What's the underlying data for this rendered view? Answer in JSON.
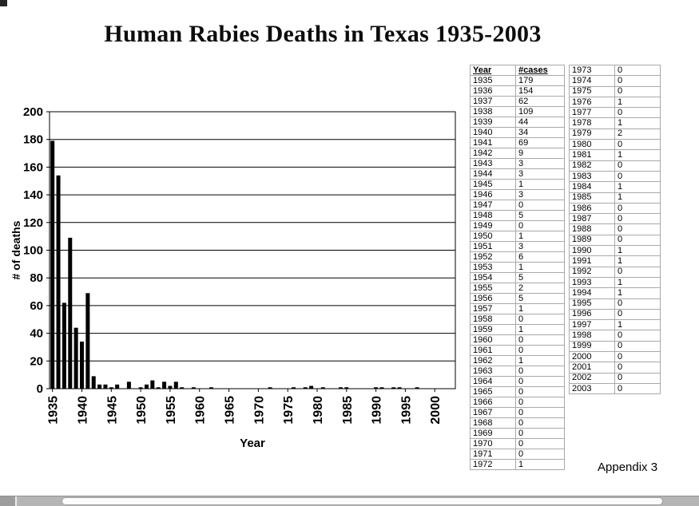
{
  "title": "Human Rabies Deaths in Texas 1935-2003",
  "appendix_label": "Appendix 3",
  "chart_data": {
    "type": "bar",
    "title": "Human Rabies Deaths in Texas 1935-2003",
    "xlabel": "Year",
    "ylabel": "# of deaths",
    "ylim": [
      0,
      200
    ],
    "ytick_interval": 20,
    "grid": true,
    "legend": "none",
    "bar_color": "#000000",
    "x_tick_years": [
      1935,
      1940,
      1945,
      1950,
      1955,
      1960,
      1965,
      1970,
      1975,
      1980,
      1985,
      1990,
      1995,
      2000
    ],
    "x": [
      1935,
      1936,
      1937,
      1938,
      1939,
      1940,
      1941,
      1942,
      1943,
      1944,
      1945,
      1946,
      1947,
      1948,
      1949,
      1950,
      1951,
      1952,
      1953,
      1954,
      1955,
      1956,
      1957,
      1958,
      1959,
      1960,
      1961,
      1962,
      1963,
      1964,
      1965,
      1966,
      1967,
      1968,
      1969,
      1970,
      1971,
      1972,
      1973,
      1974,
      1975,
      1976,
      1977,
      1978,
      1979,
      1980,
      1981,
      1982,
      1983,
      1984,
      1985,
      1986,
      1987,
      1988,
      1989,
      1990,
      1991,
      1992,
      1993,
      1994,
      1995,
      1996,
      1997,
      1998,
      1999,
      2000,
      2001,
      2002,
      2003
    ],
    "values": [
      179,
      154,
      62,
      109,
      44,
      34,
      69,
      9,
      3,
      3,
      1,
      3,
      0,
      5,
      0,
      1,
      3,
      6,
      1,
      5,
      2,
      5,
      1,
      0,
      1,
      0,
      0,
      1,
      0,
      0,
      0,
      0,
      0,
      0,
      0,
      0,
      0,
      1,
      0,
      0,
      0,
      1,
      0,
      1,
      2,
      0,
      1,
      0,
      0,
      1,
      1,
      0,
      0,
      0,
      0,
      1,
      1,
      0,
      1,
      1,
      0,
      0,
      1,
      0,
      0,
      0,
      0,
      0,
      0
    ]
  },
  "tables": {
    "left": {
      "headers": [
        "Year",
        "#cases"
      ],
      "rows": [
        [
          "1935",
          "179"
        ],
        [
          "1936",
          "154"
        ],
        [
          "1937",
          "62"
        ],
        [
          "1938",
          "109"
        ],
        [
          "1939",
          "44"
        ],
        [
          "1940",
          "34"
        ],
        [
          "1941",
          "69"
        ],
        [
          "1942",
          "9"
        ],
        [
          "1943",
          "3"
        ],
        [
          "1944",
          "3"
        ],
        [
          "1945",
          "1"
        ],
        [
          "1946",
          "3"
        ],
        [
          "1947",
          "0"
        ],
        [
          "1948",
          "5"
        ],
        [
          "1949",
          "0"
        ],
        [
          "1950",
          "1"
        ],
        [
          "1951",
          "3"
        ],
        [
          "1952",
          "6"
        ],
        [
          "1953",
          "1"
        ],
        [
          "1954",
          "5"
        ],
        [
          "1955",
          "2"
        ],
        [
          "1956",
          "5"
        ],
        [
          "1957",
          "1"
        ],
        [
          "1958",
          "0"
        ],
        [
          "1959",
          "1"
        ],
        [
          "1960",
          "0"
        ],
        [
          "1961",
          "0"
        ],
        [
          "1962",
          "1"
        ],
        [
          "1963",
          "0"
        ],
        [
          "1964",
          "0"
        ],
        [
          "1965",
          "0"
        ],
        [
          "1966",
          "0"
        ],
        [
          "1967",
          "0"
        ],
        [
          "1968",
          "0"
        ],
        [
          "1969",
          "0"
        ],
        [
          "1970",
          "0"
        ],
        [
          "1971",
          "0"
        ],
        [
          "1972",
          "1"
        ]
      ]
    },
    "right": {
      "rows": [
        [
          "1973",
          "0"
        ],
        [
          "1974",
          "0"
        ],
        [
          "1975",
          "0"
        ],
        [
          "1976",
          "1"
        ],
        [
          "1977",
          "0"
        ],
        [
          "1978",
          "1"
        ],
        [
          "1979",
          "2"
        ],
        [
          "1980",
          "0"
        ],
        [
          "1981",
          "1"
        ],
        [
          "1982",
          "0"
        ],
        [
          "1983",
          "0"
        ],
        [
          "1984",
          "1"
        ],
        [
          "1985",
          "1"
        ],
        [
          "1986",
          "0"
        ],
        [
          "1987",
          "0"
        ],
        [
          "1988",
          "0"
        ],
        [
          "1989",
          "0"
        ],
        [
          "1990",
          "1"
        ],
        [
          "1991",
          "1"
        ],
        [
          "1992",
          "0"
        ],
        [
          "1993",
          "1"
        ],
        [
          "1994",
          "1"
        ],
        [
          "1995",
          "0"
        ],
        [
          "1996",
          "0"
        ],
        [
          "1997",
          "1"
        ],
        [
          "1998",
          "0"
        ],
        [
          "1999",
          "0"
        ],
        [
          "2000",
          "0"
        ],
        [
          "2001",
          "0"
        ],
        [
          "2002",
          "0"
        ],
        [
          "2003",
          "0"
        ]
      ]
    }
  },
  "colors": {
    "bar": "#000000",
    "table_border": "#a9a9a9",
    "scrollbar_track": "#b5b5b5",
    "scrollbar_thumb": "#fcfcfc"
  }
}
